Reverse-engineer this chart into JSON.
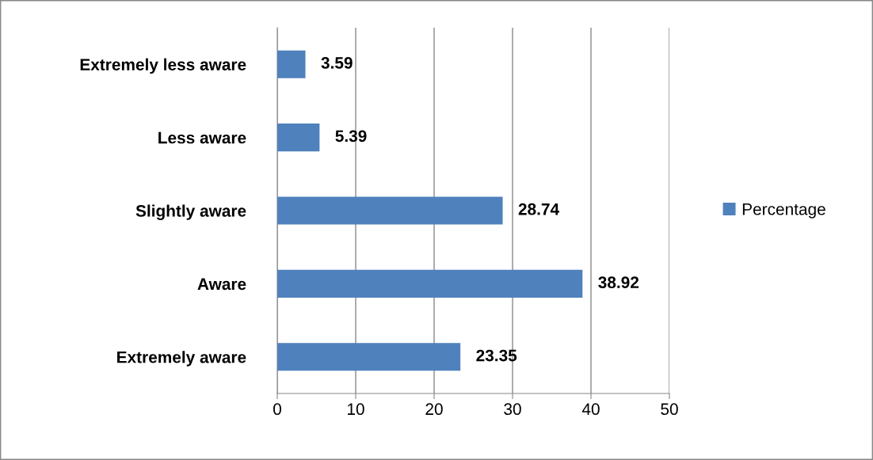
{
  "chart_data": {
    "type": "bar",
    "orientation": "horizontal",
    "categories": [
      "Extremely less aware",
      "Less aware",
      "Slightly aware",
      "Aware",
      "Extremely aware"
    ],
    "series": [
      {
        "name": "Percentage",
        "color": "#4f81bd",
        "values": [
          3.59,
          5.39,
          28.74,
          38.92,
          23.35
        ]
      }
    ],
    "xlim": [
      0,
      50
    ],
    "xticks": [
      0,
      10,
      20,
      30,
      40,
      50
    ],
    "grid": "x",
    "legend": "right",
    "data_labels": true
  }
}
